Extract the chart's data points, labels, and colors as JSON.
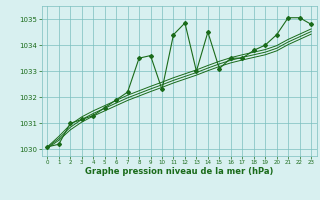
{
  "x": [
    0,
    1,
    2,
    3,
    4,
    5,
    6,
    7,
    8,
    9,
    10,
    11,
    12,
    13,
    14,
    15,
    16,
    17,
    18,
    19,
    20,
    21,
    22,
    23
  ],
  "y_main": [
    1030.1,
    1030.2,
    1031.0,
    1031.15,
    1031.3,
    1031.6,
    1031.9,
    1032.2,
    1033.5,
    1033.6,
    1032.3,
    1034.4,
    1034.85,
    1033.0,
    1034.5,
    1033.1,
    1033.5,
    1033.5,
    1033.8,
    1034.0,
    1034.4,
    1035.05,
    1035.05,
    1034.8
  ],
  "y_smooth1": [
    1030.05,
    1030.35,
    1030.75,
    1031.05,
    1031.28,
    1031.48,
    1031.68,
    1031.88,
    1032.05,
    1032.22,
    1032.38,
    1032.55,
    1032.7,
    1032.85,
    1033.02,
    1033.18,
    1033.32,
    1033.43,
    1033.53,
    1033.63,
    1033.78,
    1034.02,
    1034.22,
    1034.42
  ],
  "y_smooth2": [
    1030.08,
    1030.42,
    1030.85,
    1031.15,
    1031.38,
    1031.58,
    1031.78,
    1031.98,
    1032.15,
    1032.32,
    1032.48,
    1032.65,
    1032.8,
    1032.95,
    1033.12,
    1033.28,
    1033.42,
    1033.53,
    1033.63,
    1033.73,
    1033.88,
    1034.12,
    1034.32,
    1034.52
  ],
  "y_smooth3": [
    1030.1,
    1030.5,
    1030.95,
    1031.25,
    1031.48,
    1031.68,
    1031.88,
    1032.08,
    1032.25,
    1032.42,
    1032.58,
    1032.75,
    1032.9,
    1033.05,
    1033.22,
    1033.38,
    1033.52,
    1033.63,
    1033.73,
    1033.83,
    1033.98,
    1034.22,
    1034.42,
    1034.62
  ],
  "line_color": "#1a6b1a",
  "bg_color": "#d8f0f0",
  "grid_color": "#7bbfbf",
  "xlabel": "Graphe pression niveau de la mer (hPa)",
  "ylim": [
    1029.75,
    1035.5
  ],
  "xlim": [
    -0.5,
    23.5
  ],
  "ylabel_ticks": [
    1030,
    1031,
    1032,
    1033,
    1034,
    1035
  ],
  "xticks": [
    0,
    1,
    2,
    3,
    4,
    5,
    6,
    7,
    8,
    9,
    10,
    11,
    12,
    13,
    14,
    15,
    16,
    17,
    18,
    19,
    20,
    21,
    22,
    23
  ]
}
